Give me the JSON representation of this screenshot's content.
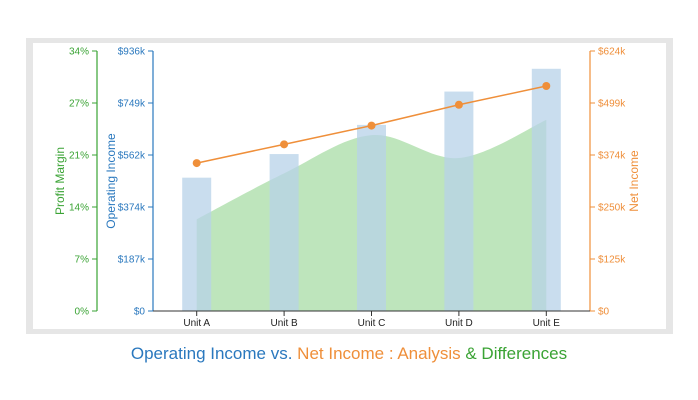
{
  "chart_data": {
    "type": "bar",
    "categories": [
      "Unit A",
      "Unit B",
      "Unit C",
      "Unit D",
      "Unit E"
    ],
    "series": [
      {
        "name": "Operating Income",
        "kind": "bar",
        "axis": "left-inner",
        "color": "#b7d2e8",
        "values": [
          480000,
          565000,
          670000,
          790000,
          872000
        ]
      },
      {
        "name": "Net Income",
        "kind": "line",
        "axis": "right",
        "color": "#ef8f3a",
        "values": [
          355000,
          400000,
          445000,
          495000,
          540000
        ]
      },
      {
        "name": "Profit Margin",
        "kind": "area",
        "axis": "left-outer",
        "color": "#a8dca5",
        "values": [
          12,
          18,
          23,
          20,
          25
        ]
      }
    ],
    "axes": {
      "profit_margin": {
        "title": "Profit Margin",
        "color": "#3aa334",
        "range": [
          0,
          34
        ],
        "ticks": [
          "0%",
          "7%",
          "14%",
          "21%",
          "27%",
          "34%"
        ]
      },
      "operating_income": {
        "title": "Operating Income",
        "color": "#2a78be",
        "range": [
          0,
          936000
        ],
        "ticks": [
          "$0",
          "$187k",
          "$374k",
          "$562k",
          "$749k",
          "$936k"
        ]
      },
      "net_income": {
        "title": "Net Income",
        "color": "#ef8f3a",
        "range": [
          0,
          624000
        ],
        "ticks": [
          "$0",
          "$125k",
          "$250k",
          "$374k",
          "$499k",
          "$624k"
        ]
      }
    },
    "grid": false,
    "legend": "none"
  },
  "caption": {
    "part1": "Operating Income vs.",
    "part2": " Net Income : Analysis",
    "part3": " & Differences",
    "color1": "#2a78be",
    "color2": "#ef8f3a",
    "color3": "#3aa334"
  }
}
